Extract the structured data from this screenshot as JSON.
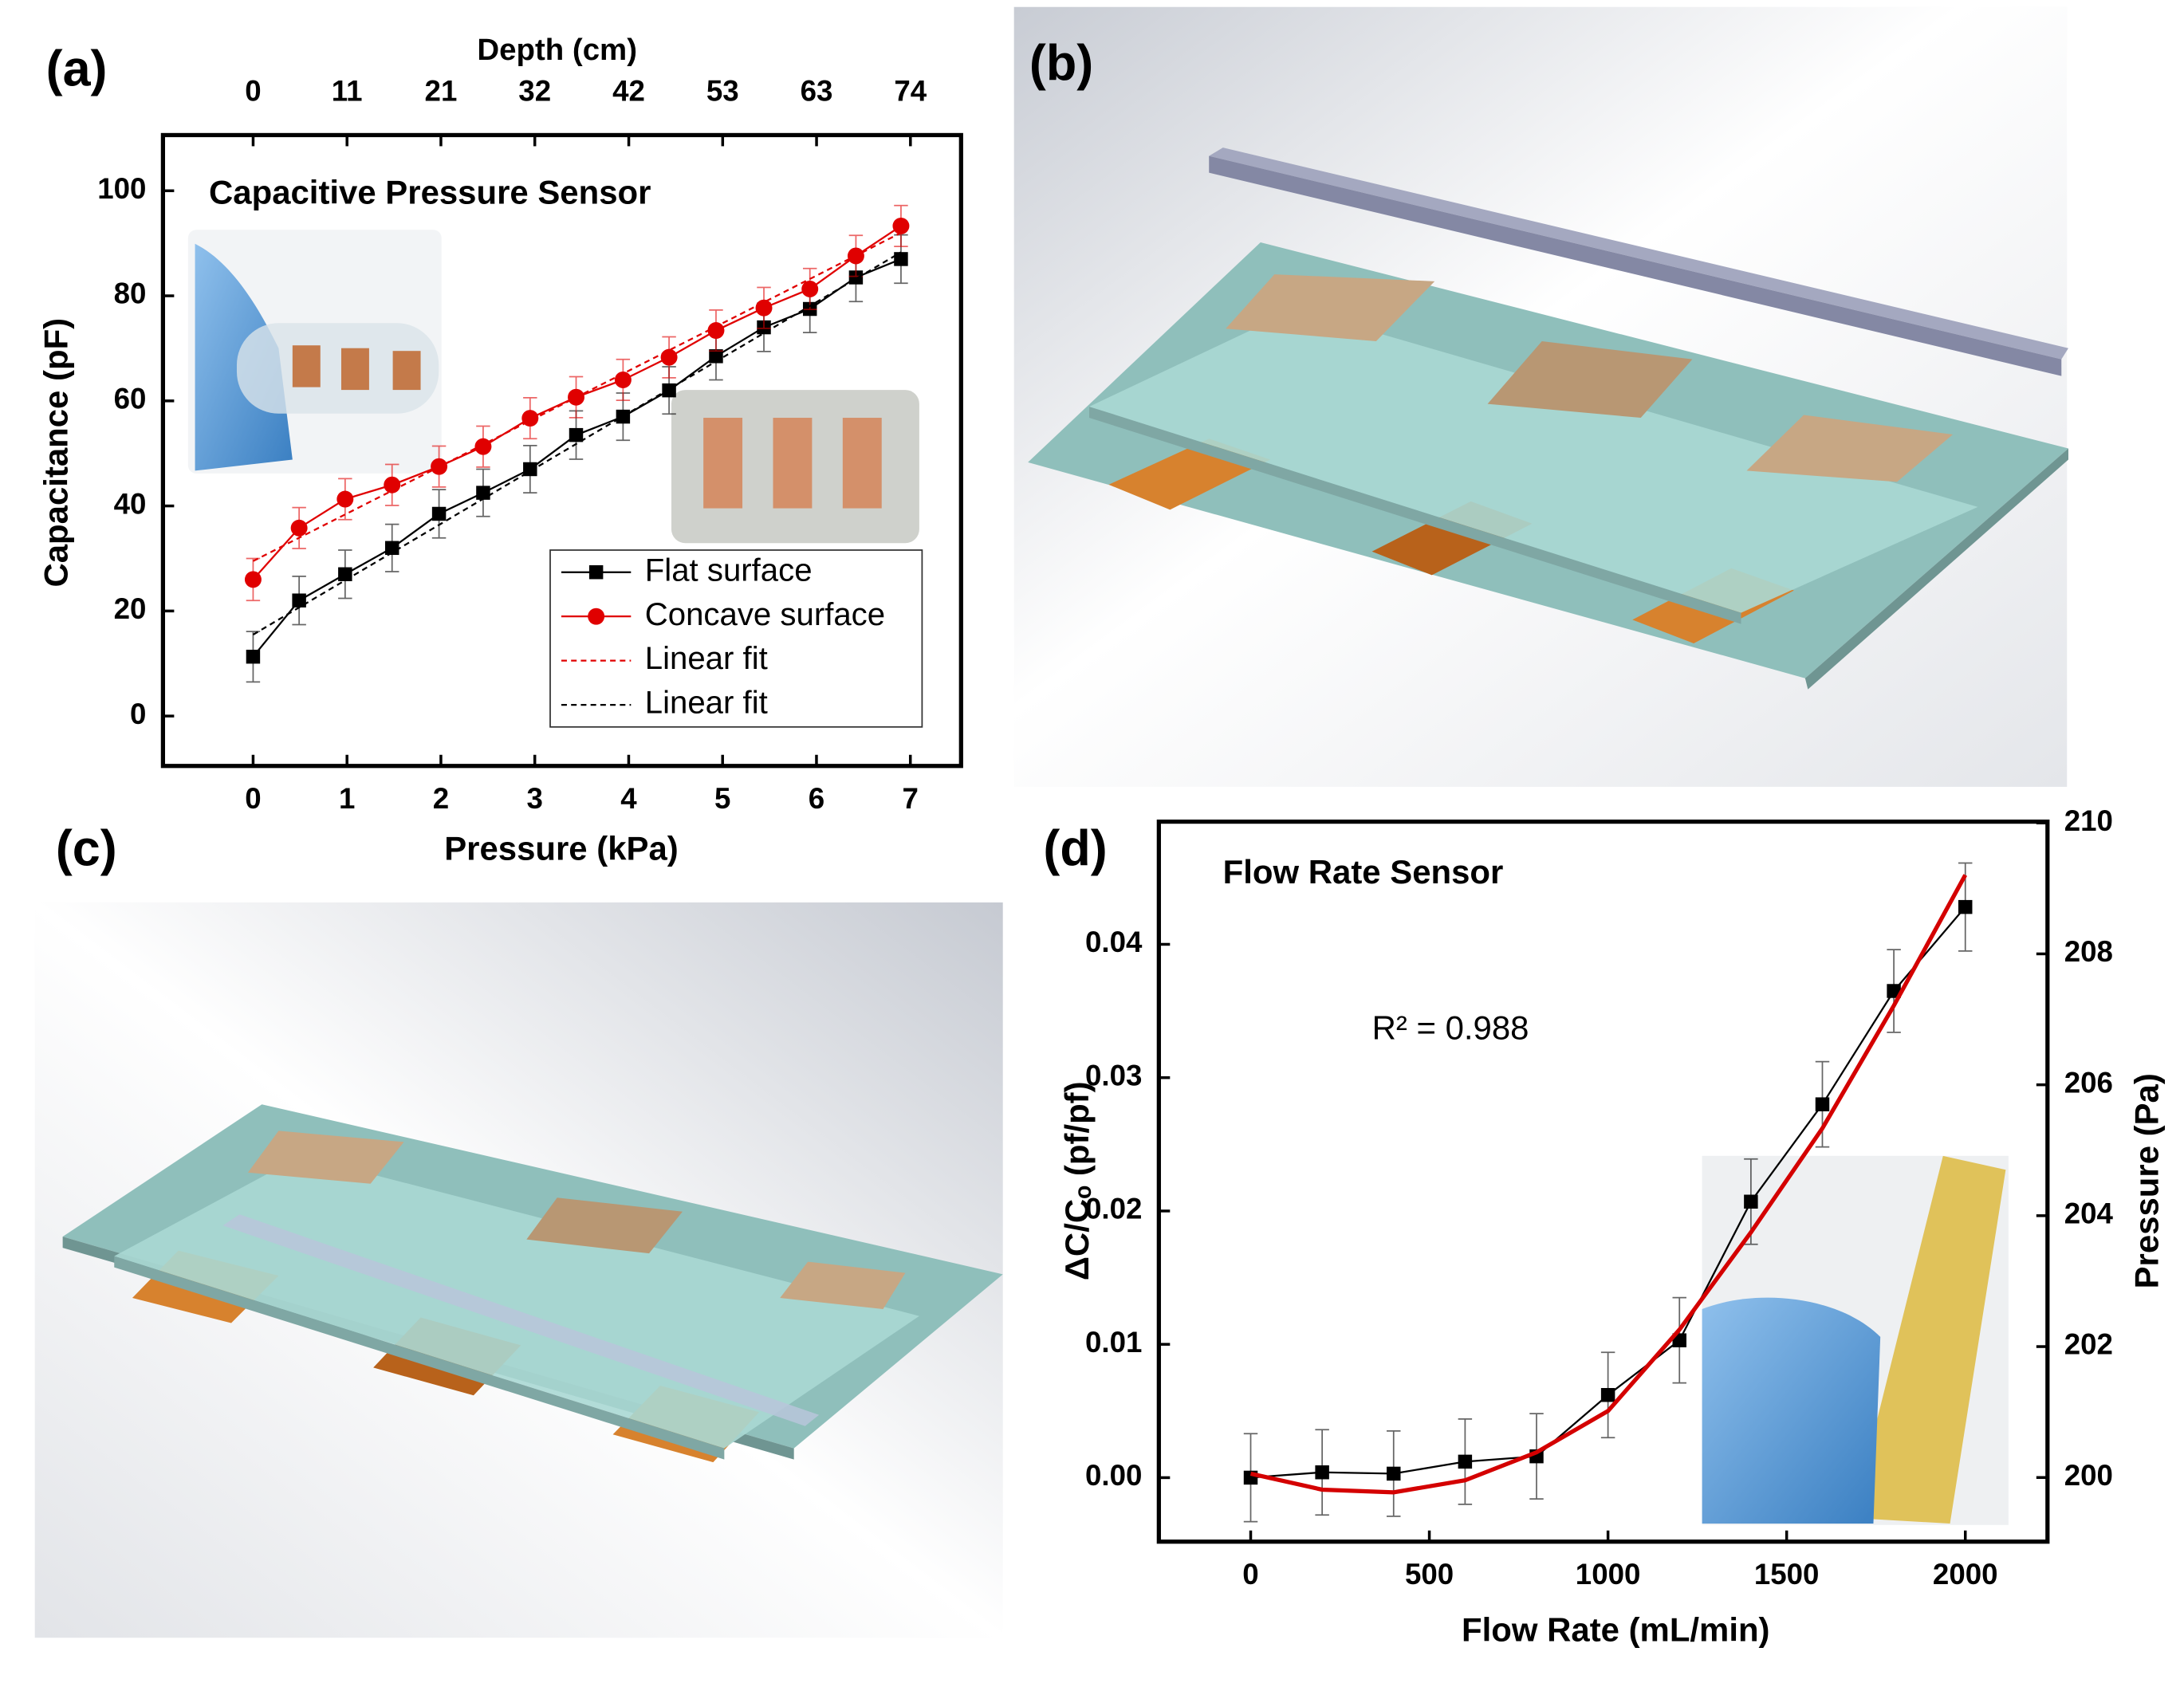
{
  "panel_labels": [
    "(a)",
    "(b)",
    "(c)",
    "(d)"
  ],
  "chart_data": [
    {
      "type": "line",
      "title": "Capacitive Pressure Sensor",
      "xlabel": "Pressure (kPa)",
      "ylabel": "Capacitance (pF)",
      "x2label": "Depth (cm)",
      "xlim": [
        -0.96,
        7.54
      ],
      "xticks": [
        0,
        1,
        2,
        3,
        4,
        5,
        6,
        7
      ],
      "ylim": [
        -9.5,
        110.6
      ],
      "yticks": [
        0,
        20,
        40,
        60,
        80,
        100
      ],
      "x2lim": [
        -10.15,
        79.7
      ],
      "x2ticks": [
        0,
        {
          "value": 10.57,
          "label": "11"
        },
        {
          "value": 21.14,
          "label": "21"
        },
        {
          "value": 31.71,
          "label": "32"
        },
        {
          "value": 42.29,
          "label": "42"
        },
        {
          "value": 52.86,
          "label": "53"
        },
        {
          "value": 63.43,
          "label": "63"
        },
        74
      ],
      "legend": "lower right",
      "series": [
        {
          "name": "Flat surface",
          "color": "#000000",
          "marker": "square",
          "x": [
            0,
            0.49,
            0.98,
            1.48,
            1.98,
            2.45,
            2.95,
            3.44,
            3.94,
            4.43,
            4.93,
            5.44,
            5.93,
            6.42,
            6.9
          ],
          "values": [
            11.3,
            22,
            27,
            32,
            38.5,
            42.5,
            47,
            53.5,
            57,
            62,
            68.5,
            74,
            77.5,
            83.5,
            87
          ],
          "errors": [
            4.8,
            4.6,
            4.6,
            4.5,
            4.6,
            4.5,
            4.5,
            4.6,
            4.5,
            4.5,
            4.5,
            4.6,
            4.5,
            4.6,
            4.6
          ]
        },
        {
          "name": "Concave surface",
          "color": "#e00000",
          "marker": "circle",
          "x": [
            0,
            0.49,
            0.98,
            1.48,
            1.98,
            2.45,
            2.95,
            3.44,
            3.94,
            4.43,
            4.93,
            5.44,
            5.93,
            6.42,
            6.9
          ],
          "values": [
            26,
            35.8,
            41.3,
            44,
            47.5,
            51.3,
            56.7,
            60.7,
            64,
            68.3,
            73.4,
            77.7,
            81.3,
            87.6,
            93.3
          ],
          "errors": [
            4,
            3.9,
            3.9,
            3.9,
            3.9,
            3.9,
            3.9,
            3.9,
            3.9,
            3.9,
            3.9,
            3.9,
            3.9,
            3.9,
            3.9
          ]
        },
        {
          "name": "Linear fit",
          "color": "#e00000",
          "linestyle": "dashed",
          "x": [
            0,
            6.9
          ],
          "values": [
            29.5,
            92
          ]
        },
        {
          "name": "Linear fit",
          "color": "#000000",
          "linestyle": "dashed",
          "x": [
            0,
            6.9
          ],
          "values": [
            15.5,
            88.3
          ]
        }
      ]
    },
    {
      "type": "line",
      "title": "Flow Rate Sensor",
      "annotation": "R² = 0.988",
      "xlabel": "Flow Rate (mL/min)",
      "ylabel": "ΔC/Cₒ (pf/pf)",
      "y2label": "Pressure (Pa)",
      "xlim": [
        -257,
        2230
      ],
      "xticks": [
        0,
        500,
        1000,
        1500,
        2000
      ],
      "ylim": [
        -0.0048,
        0.0492
      ],
      "yticks": [
        {
          "value": 0,
          "label": "0.00"
        },
        0.01,
        0.02,
        0.03,
        0.04
      ],
      "y2lim": [
        199.02,
        210.02
      ],
      "y2ticks": [
        200,
        202,
        204,
        206,
        208,
        210
      ],
      "series": [
        {
          "color": "#000000",
          "marker": "square",
          "x": [
            0,
            200,
            400,
            600,
            800,
            1000,
            1200,
            1400,
            1600,
            1800,
            2000
          ],
          "values": [
            0,
            0.0004,
            0.0003,
            0.0012,
            0.0016,
            0.0062,
            0.0103,
            0.0207,
            0.028,
            0.0365,
            0.0428
          ],
          "errors": [
            0.0033,
            0.0032,
            0.0032,
            0.0032,
            0.0032,
            0.0032,
            0.0032,
            0.0032,
            0.0032,
            0.0031,
            0.0033
          ]
        },
        {
          "color": "#d40000",
          "linewidth": 3,
          "x": [
            0,
            200,
            400,
            600,
            800,
            1000,
            1200,
            1400,
            1600,
            1800,
            2000
          ],
          "values": [
            0.0003,
            -0.0009,
            -0.0011,
            -0.0002,
            0.0019,
            0.005,
            0.0111,
            0.0184,
            0.0262,
            0.0354,
            0.0452
          ]
        }
      ]
    }
  ]
}
